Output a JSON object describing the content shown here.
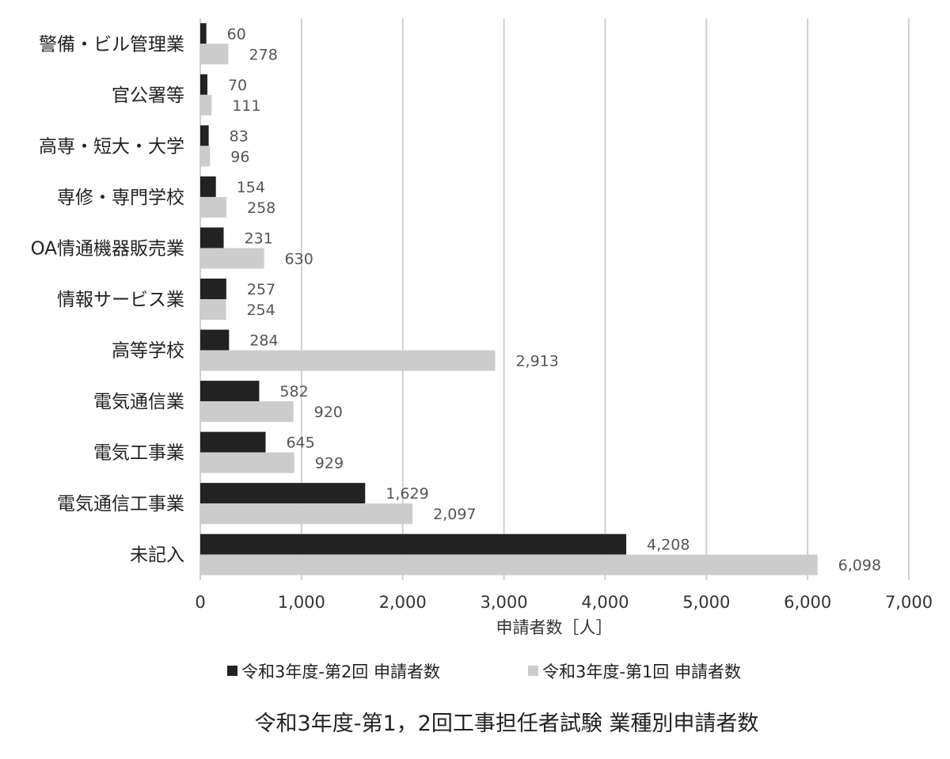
{
  "chart_data": {
    "type": "bar",
    "orientation": "horizontal",
    "title": "令和3年度-第1，2回工事担任者試験 業種別申請者数",
    "xlabel": "申請者数［人］",
    "ylabel": "",
    "xlim": [
      0,
      7000
    ],
    "xticks": [
      0,
      1000,
      2000,
      3000,
      4000,
      5000,
      6000,
      7000
    ],
    "xtick_labels": [
      "0",
      "1,000",
      "2,000",
      "3,000",
      "4,000",
      "5,000",
      "6,000",
      "7,000"
    ],
    "grid": "vertical",
    "legend_position": "bottom",
    "categories": [
      "警備・ビル管理業",
      "官公署等",
      "高専・短大・大学",
      "専修・専門学校",
      "OA情通機器販売業",
      "情報サービス業",
      "高等学校",
      "電気通信業",
      "電気工事業",
      "電気通信工事業",
      "未記入"
    ],
    "series": [
      {
        "name": "令和3年度-第2回 申請者数",
        "color": "#222222",
        "values": [
          60,
          70,
          83,
          154,
          231,
          257,
          284,
          582,
          645,
          1629,
          4208
        ],
        "value_labels": [
          "60",
          "70",
          "83",
          "154",
          "231",
          "257",
          "284",
          "582",
          "645",
          "1,629",
          "4,208"
        ]
      },
      {
        "name": "令和3年度-第1回 申請者数",
        "color": "#cccccc",
        "values": [
          278,
          111,
          96,
          258,
          630,
          254,
          2913,
          920,
          929,
          2097,
          6098
        ],
        "value_labels": [
          "278",
          "111",
          "96",
          "258",
          "630",
          "254",
          "2,913",
          "920",
          "929",
          "2,097",
          "6,098"
        ]
      }
    ]
  }
}
